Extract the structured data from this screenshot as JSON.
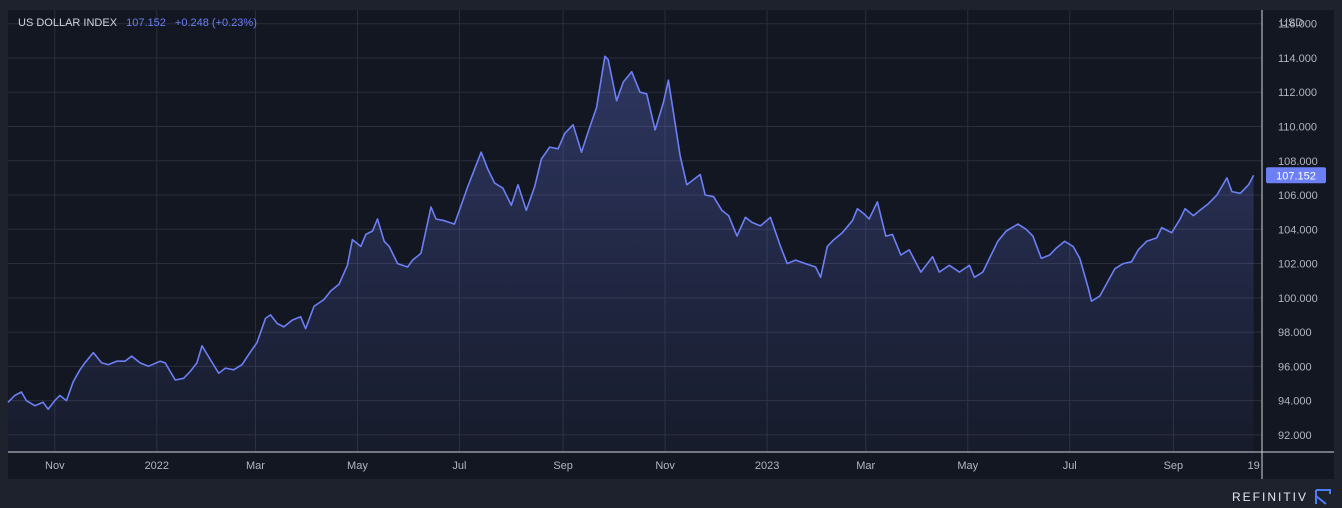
{
  "legend": {
    "name": "US DOLLAR INDEX",
    "value": "107.152",
    "change": "+0.248 (+0.23%)"
  },
  "brand": "REFINITIV",
  "colors": {
    "line": "#6c7ff5",
    "background": "#131722",
    "frame": "#1e222d",
    "grid": "#2a2e39",
    "axis_text": "#b2b5be",
    "price_label_bg": "#6c7ff5"
  },
  "chart_data": {
    "type": "area",
    "currency_label": "USD",
    "last_value_label": "107.152",
    "y_ticks": [
      "116.000",
      "114.000",
      "112.000",
      "110.000",
      "108.000",
      "106.000",
      "104.000",
      "102.000",
      "100.000",
      "98.000",
      "96.000",
      "94.000",
      "92.000"
    ],
    "x_ticks": [
      {
        "label": "Nov",
        "x": "2021-11-01"
      },
      {
        "label": "2022",
        "x": "2022-01-01"
      },
      {
        "label": "Mar",
        "x": "2022-03-01"
      },
      {
        "label": "May",
        "x": "2022-05-01"
      },
      {
        "label": "Jul",
        "x": "2022-07-01"
      },
      {
        "label": "Sep",
        "x": "2022-09-01"
      },
      {
        "label": "Nov",
        "x": "2022-11-01"
      },
      {
        "label": "2023",
        "x": "2023-01-01"
      },
      {
        "label": "Mar",
        "x": "2023-03-01"
      },
      {
        "label": "May",
        "x": "2023-05-01"
      },
      {
        "label": "Jul",
        "x": "2023-07-01"
      },
      {
        "label": "Sep",
        "x": "2023-09-01"
      },
      {
        "label": "19",
        "x": "2023-10-19"
      }
    ],
    "ylim": [
      91,
      116.8
    ],
    "xlim": [
      "2021-10-04",
      "2023-10-24"
    ],
    "grid": true,
    "series": [
      {
        "points": [
          [
            "2021-10-04",
            93.9
          ],
          [
            "2021-10-08",
            94.3
          ],
          [
            "2021-10-12",
            94.5
          ],
          [
            "2021-10-15",
            94.0
          ],
          [
            "2021-10-20",
            93.7
          ],
          [
            "2021-10-25",
            93.9
          ],
          [
            "2021-10-28",
            93.5
          ],
          [
            "2021-11-01",
            94.0
          ],
          [
            "2021-11-04",
            94.3
          ],
          [
            "2021-11-08",
            94.0
          ],
          [
            "2021-11-12",
            95.1
          ],
          [
            "2021-11-16",
            95.8
          ],
          [
            "2021-11-19",
            96.2
          ],
          [
            "2021-11-24",
            96.8
          ],
          [
            "2021-11-29",
            96.2
          ],
          [
            "2021-12-03",
            96.1
          ],
          [
            "2021-12-08",
            96.3
          ],
          [
            "2021-12-13",
            96.3
          ],
          [
            "2021-12-17",
            96.6
          ],
          [
            "2021-12-22",
            96.2
          ],
          [
            "2021-12-27",
            96.0
          ],
          [
            "2022-01-03",
            96.3
          ],
          [
            "2022-01-06",
            96.2
          ],
          [
            "2022-01-12",
            95.2
          ],
          [
            "2022-01-17",
            95.3
          ],
          [
            "2022-01-21",
            95.7
          ],
          [
            "2022-01-25",
            96.2
          ],
          [
            "2022-01-28",
            97.2
          ],
          [
            "2022-02-02",
            96.4
          ],
          [
            "2022-02-07",
            95.6
          ],
          [
            "2022-02-11",
            95.9
          ],
          [
            "2022-02-16",
            95.8
          ],
          [
            "2022-02-21",
            96.1
          ],
          [
            "2022-02-25",
            96.7
          ],
          [
            "2022-03-02",
            97.4
          ],
          [
            "2022-03-07",
            98.8
          ],
          [
            "2022-03-10",
            99.0
          ],
          [
            "2022-03-14",
            98.5
          ],
          [
            "2022-03-18",
            98.3
          ],
          [
            "2022-03-23",
            98.7
          ],
          [
            "2022-03-28",
            98.9
          ],
          [
            "2022-03-31",
            98.2
          ],
          [
            "2022-04-05",
            99.5
          ],
          [
            "2022-04-11",
            99.9
          ],
          [
            "2022-04-15",
            100.4
          ],
          [
            "2022-04-20",
            100.8
          ],
          [
            "2022-04-25",
            101.9
          ],
          [
            "2022-04-28",
            103.4
          ],
          [
            "2022-05-03",
            103.0
          ],
          [
            "2022-05-06",
            103.7
          ],
          [
            "2022-05-10",
            103.9
          ],
          [
            "2022-05-13",
            104.6
          ],
          [
            "2022-05-17",
            103.3
          ],
          [
            "2022-05-20",
            103.0
          ],
          [
            "2022-05-25",
            102.0
          ],
          [
            "2022-05-31",
            101.8
          ],
          [
            "2022-06-03",
            102.2
          ],
          [
            "2022-06-08",
            102.6
          ],
          [
            "2022-06-14",
            105.3
          ],
          [
            "2022-06-17",
            104.6
          ],
          [
            "2022-06-22",
            104.5
          ],
          [
            "2022-06-28",
            104.3
          ],
          [
            "2022-07-01",
            105.1
          ],
          [
            "2022-07-06",
            106.5
          ],
          [
            "2022-07-12",
            108.0
          ],
          [
            "2022-07-14",
            108.5
          ],
          [
            "2022-07-18",
            107.5
          ],
          [
            "2022-07-22",
            106.7
          ],
          [
            "2022-07-27",
            106.4
          ],
          [
            "2022-08-01",
            105.4
          ],
          [
            "2022-08-05",
            106.6
          ],
          [
            "2022-08-10",
            105.1
          ],
          [
            "2022-08-15",
            106.5
          ],
          [
            "2022-08-19",
            108.1
          ],
          [
            "2022-08-24",
            108.8
          ],
          [
            "2022-08-29",
            108.7
          ],
          [
            "2022-09-02",
            109.6
          ],
          [
            "2022-09-07",
            110.1
          ],
          [
            "2022-09-12",
            108.5
          ],
          [
            "2022-09-16",
            109.7
          ],
          [
            "2022-09-21",
            111.1
          ],
          [
            "2022-09-26",
            114.1
          ],
          [
            "2022-09-28",
            113.9
          ],
          [
            "2022-10-03",
            111.5
          ],
          [
            "2022-10-07",
            112.6
          ],
          [
            "2022-10-12",
            113.2
          ],
          [
            "2022-10-17",
            112.0
          ],
          [
            "2022-10-21",
            111.9
          ],
          [
            "2022-10-26",
            109.8
          ],
          [
            "2022-10-31",
            111.4
          ],
          [
            "2022-11-03",
            112.7
          ],
          [
            "2022-11-07",
            110.2
          ],
          [
            "2022-11-10",
            108.3
          ],
          [
            "2022-11-14",
            106.6
          ],
          [
            "2022-11-18",
            106.9
          ],
          [
            "2022-11-22",
            107.2
          ],
          [
            "2022-11-25",
            106.0
          ],
          [
            "2022-11-30",
            105.9
          ],
          [
            "2022-12-05",
            105.1
          ],
          [
            "2022-12-09",
            104.8
          ],
          [
            "2022-12-14",
            103.6
          ],
          [
            "2022-12-19",
            104.7
          ],
          [
            "2022-12-23",
            104.4
          ],
          [
            "2022-12-28",
            104.2
          ],
          [
            "2023-01-03",
            104.7
          ],
          [
            "2023-01-09",
            103.0
          ],
          [
            "2023-01-13",
            102.0
          ],
          [
            "2023-01-18",
            102.2
          ],
          [
            "2023-01-24",
            102.0
          ],
          [
            "2023-01-30",
            101.8
          ],
          [
            "2023-02-02",
            101.2
          ],
          [
            "2023-02-06",
            103.0
          ],
          [
            "2023-02-10",
            103.4
          ],
          [
            "2023-02-15",
            103.8
          ],
          [
            "2023-02-21",
            104.5
          ],
          [
            "2023-02-24",
            105.2
          ],
          [
            "2023-02-28",
            104.9
          ],
          [
            "2023-03-03",
            104.6
          ],
          [
            "2023-03-08",
            105.6
          ],
          [
            "2023-03-13",
            103.6
          ],
          [
            "2023-03-17",
            103.7
          ],
          [
            "2023-03-22",
            102.5
          ],
          [
            "2023-03-27",
            102.8
          ],
          [
            "2023-04-03",
            101.5
          ],
          [
            "2023-04-10",
            102.4
          ],
          [
            "2023-04-14",
            101.5
          ],
          [
            "2023-04-20",
            101.9
          ],
          [
            "2023-04-26",
            101.5
          ],
          [
            "2023-05-02",
            101.9
          ],
          [
            "2023-05-05",
            101.2
          ],
          [
            "2023-05-10",
            101.5
          ],
          [
            "2023-05-15",
            102.5
          ],
          [
            "2023-05-19",
            103.3
          ],
          [
            "2023-05-24",
            103.9
          ],
          [
            "2023-05-31",
            104.3
          ],
          [
            "2023-06-05",
            104.0
          ],
          [
            "2023-06-09",
            103.6
          ],
          [
            "2023-06-14",
            102.3
          ],
          [
            "2023-06-19",
            102.5
          ],
          [
            "2023-06-23",
            102.9
          ],
          [
            "2023-06-28",
            103.3
          ],
          [
            "2023-07-03",
            103.0
          ],
          [
            "2023-07-07",
            102.3
          ],
          [
            "2023-07-12",
            100.6
          ],
          [
            "2023-07-14",
            99.8
          ],
          [
            "2023-07-19",
            100.1
          ],
          [
            "2023-07-24",
            101.0
          ],
          [
            "2023-07-28",
            101.7
          ],
          [
            "2023-08-02",
            102.0
          ],
          [
            "2023-08-07",
            102.1
          ],
          [
            "2023-08-11",
            102.8
          ],
          [
            "2023-08-16",
            103.3
          ],
          [
            "2023-08-22",
            103.5
          ],
          [
            "2023-08-25",
            104.1
          ],
          [
            "2023-08-31",
            103.8
          ],
          [
            "2023-09-05",
            104.6
          ],
          [
            "2023-09-08",
            105.2
          ],
          [
            "2023-09-13",
            104.8
          ],
          [
            "2023-09-18",
            105.2
          ],
          [
            "2023-09-22",
            105.5
          ],
          [
            "2023-09-27",
            106.0
          ],
          [
            "2023-10-03",
            107.0
          ],
          [
            "2023-10-06",
            106.2
          ],
          [
            "2023-10-11",
            106.1
          ],
          [
            "2023-10-16",
            106.6
          ],
          [
            "2023-10-19",
            107.152
          ]
        ]
      }
    ]
  }
}
